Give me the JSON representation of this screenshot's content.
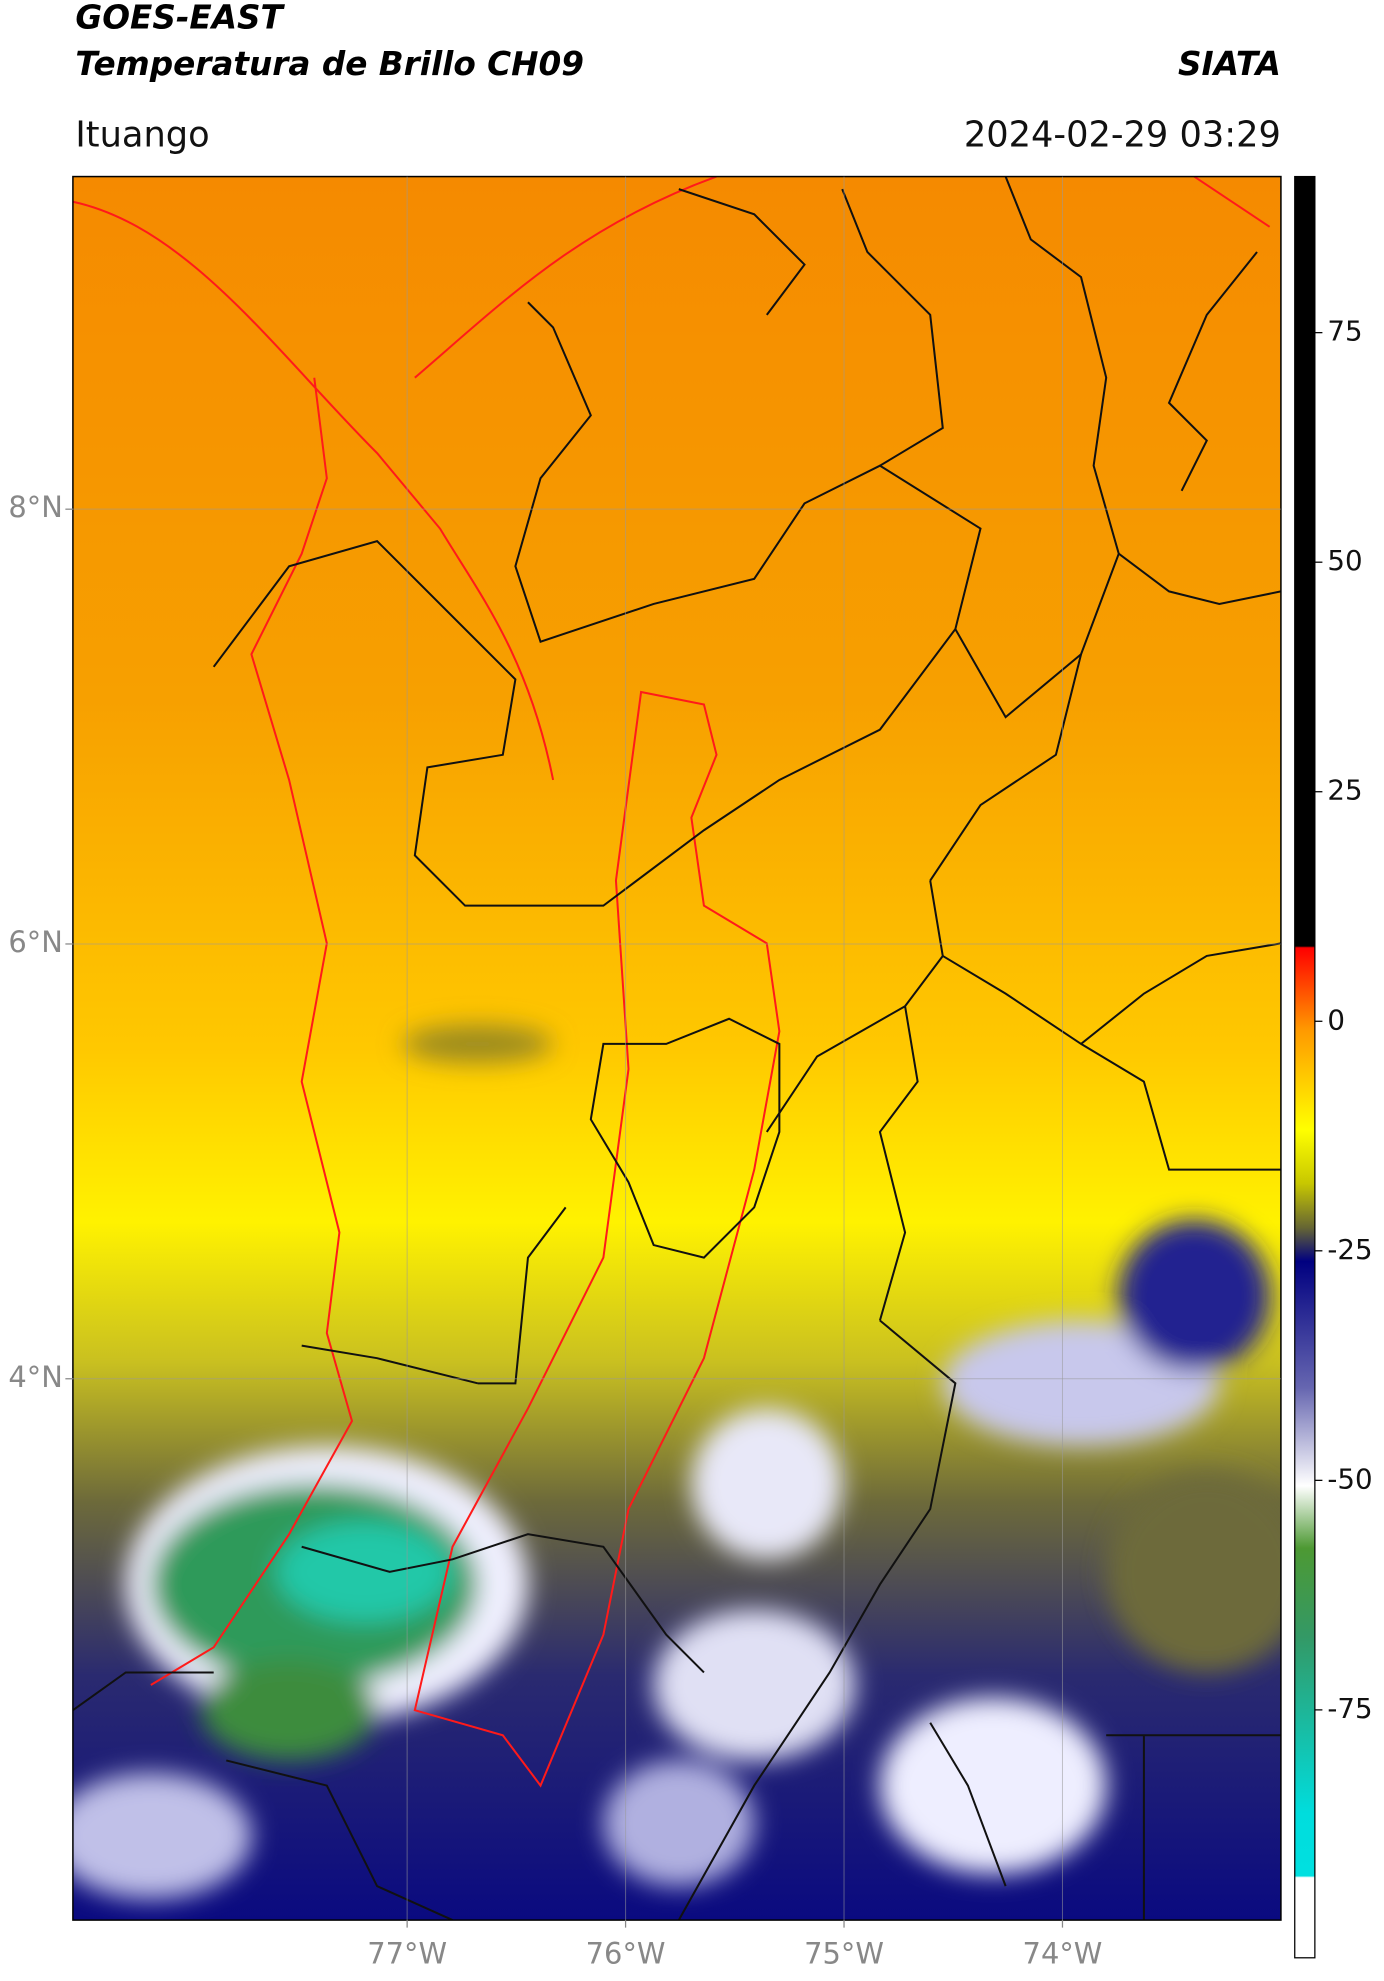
{
  "header": {
    "title_line1": "GOES-EAST",
    "title_line2": "Temperatura de Brillo CH09",
    "source": "SIATA",
    "location": "Ituango",
    "datetime": "2024-02-29 03:29"
  },
  "map": {
    "xlim": [
      -78.53,
      -73.0
    ],
    "ylim": [
      1.51,
      9.53
    ],
    "xticks": [
      {
        "value": -77,
        "label": "77°W"
      },
      {
        "value": -76,
        "label": "76°W"
      },
      {
        "value": -75,
        "label": "75°W"
      },
      {
        "value": -74,
        "label": "74°W"
      }
    ],
    "yticks": [
      {
        "value": 8,
        "label": "8°N"
      },
      {
        "value": 6,
        "label": "6°N"
      },
      {
        "value": 4,
        "label": "4°N"
      }
    ]
  },
  "colorbar": {
    "lim": [
      -102,
      92
    ],
    "ticks": [
      75,
      50,
      25,
      0,
      -25,
      -50,
      -75
    ]
  }
}
